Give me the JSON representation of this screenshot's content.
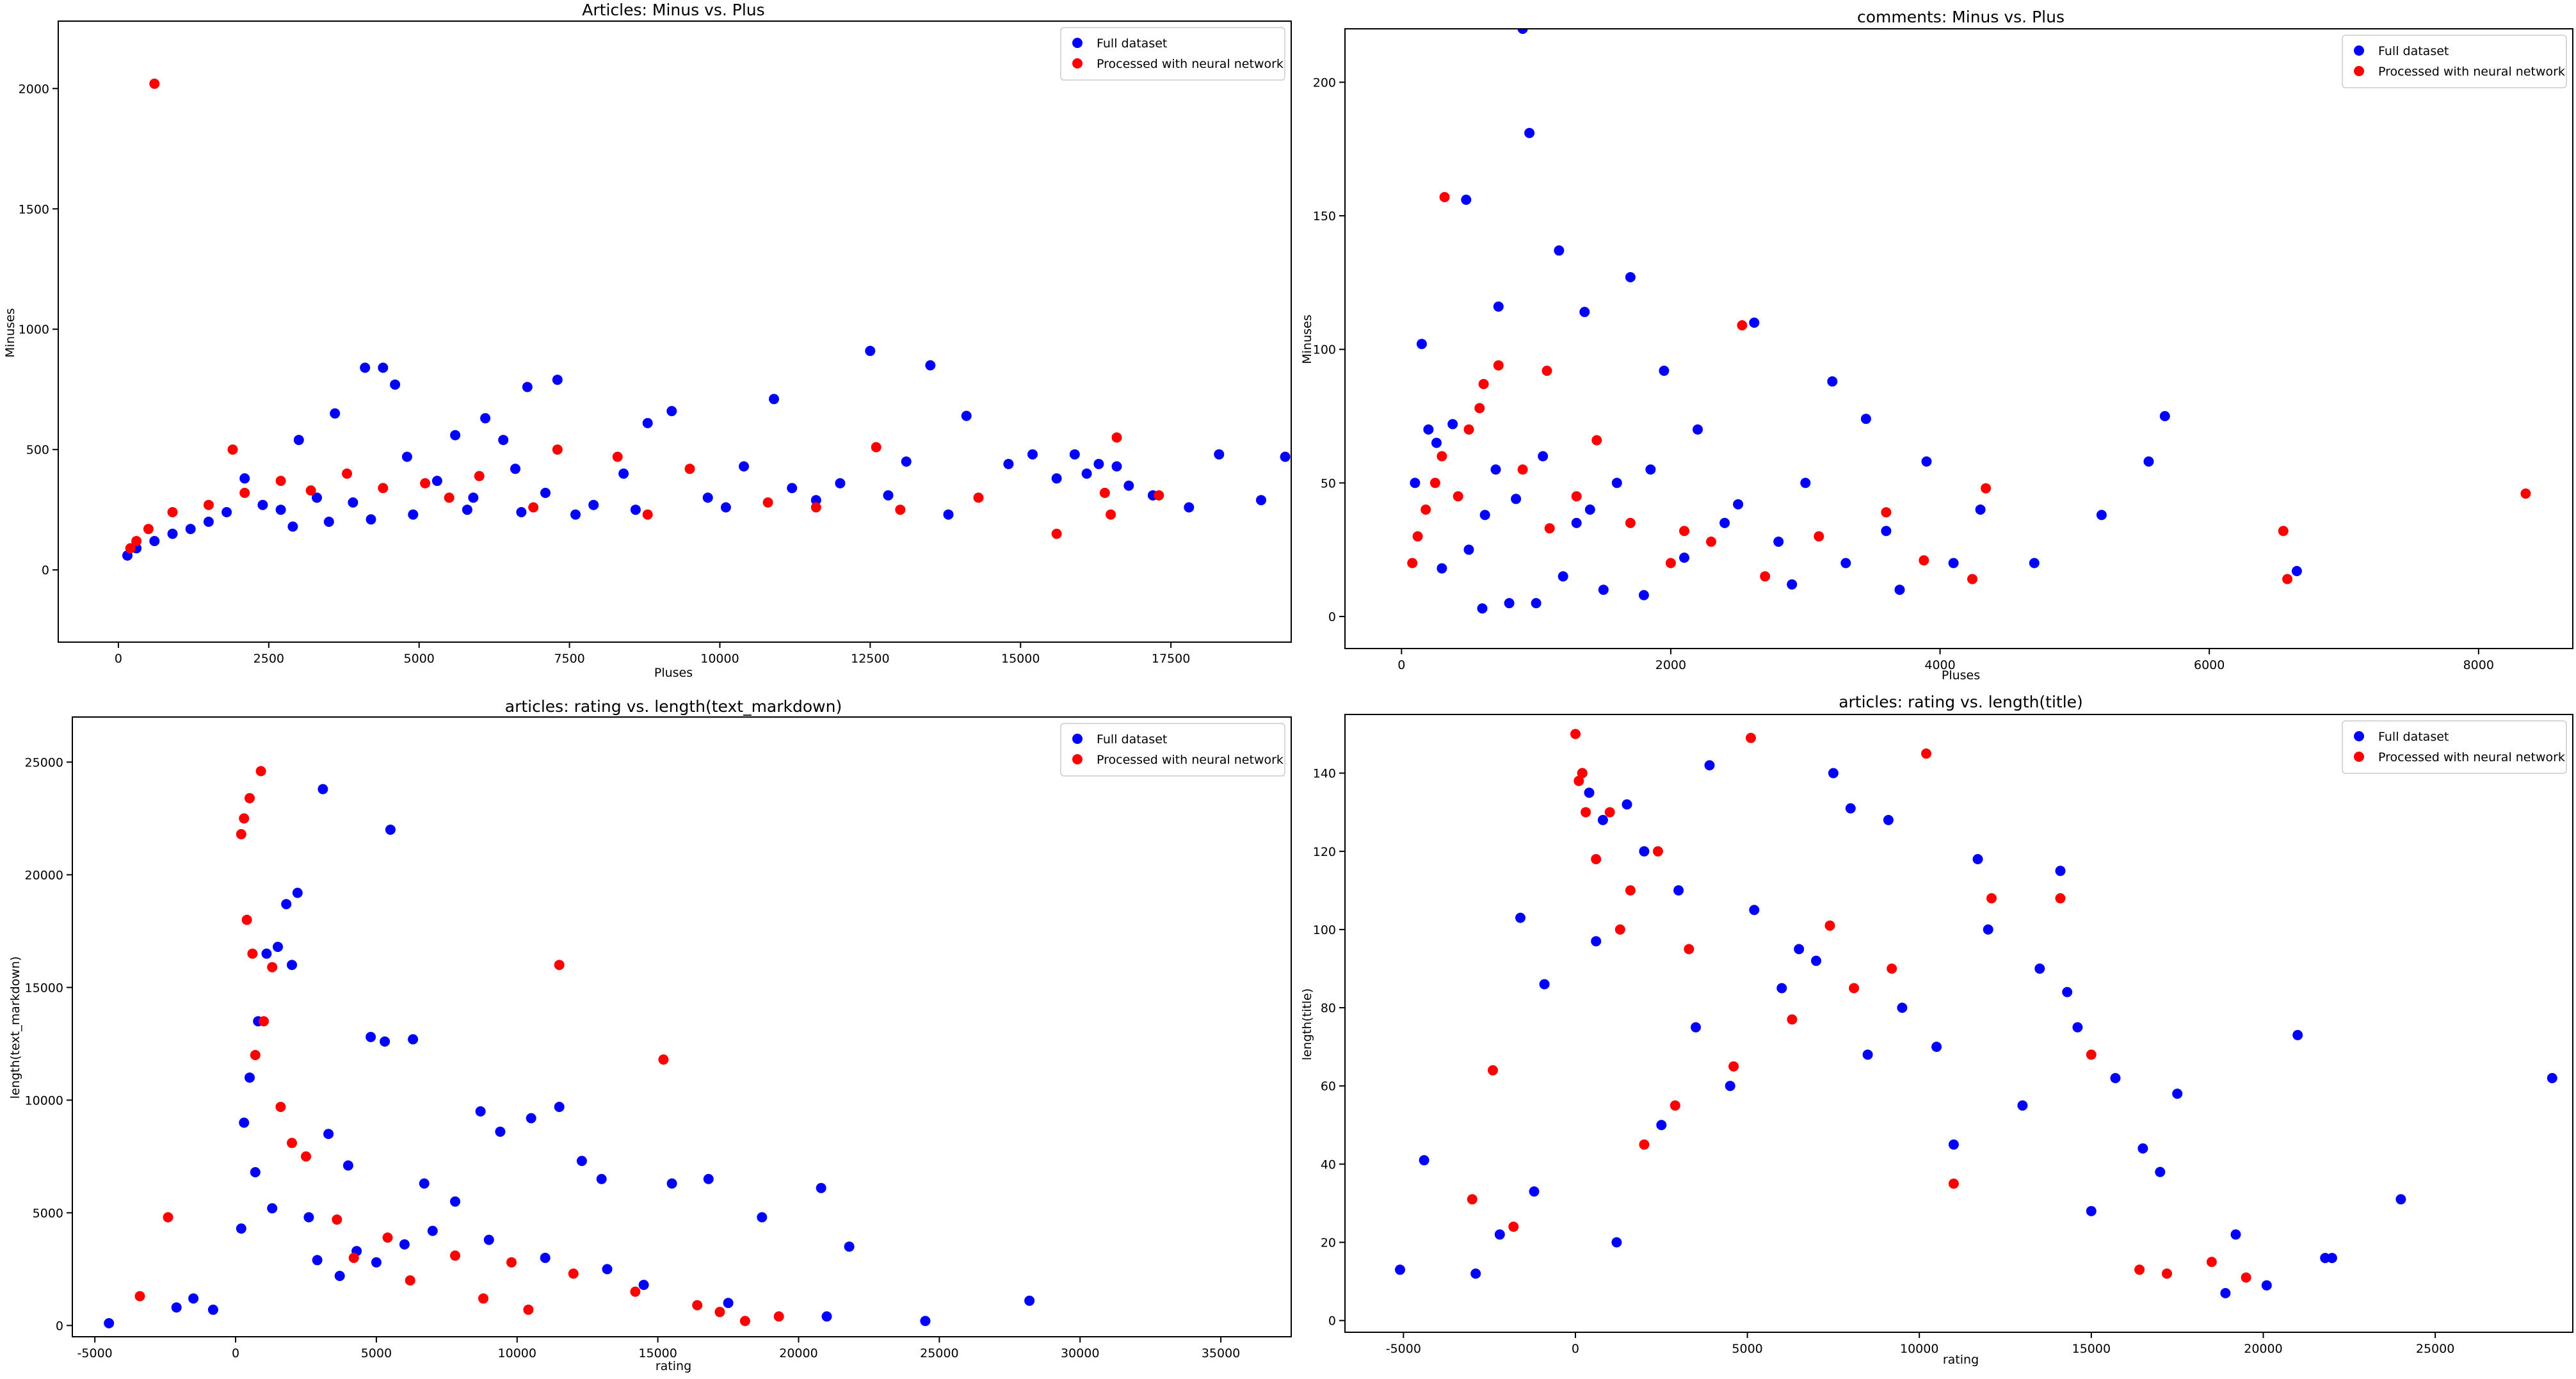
{
  "colors": {
    "full": "#0000ff",
    "nn": "#ff0000",
    "axis": "#000000",
    "background": "#ffffff"
  },
  "chart_data": [
    {
      "type": "scatter",
      "title": "Articles: Minus vs. Plus",
      "xlabel": "Pluses",
      "ylabel": "Minuses",
      "xlim": [
        -1000,
        19500
      ],
      "ylim": [
        -300,
        2280
      ],
      "xticks": [
        0,
        2500,
        5000,
        7500,
        10000,
        12500,
        15000,
        17500
      ],
      "yticks": [
        0,
        500,
        1000,
        1500,
        2000
      ],
      "legend": [
        "Full dataset",
        "Processed with neural network"
      ],
      "legend_loc": "upper right",
      "series": [
        {
          "name": "Full dataset",
          "color": "#0000ff",
          "x": [
            4100,
            4400,
            4600,
            6800,
            7300,
            12500,
            13500,
            8800,
            10900,
            9200,
            5600,
            6100,
            6400,
            3600,
            4800,
            3000,
            2100,
            14100,
            15200,
            15900,
            16100,
            16600,
            17200,
            18300,
            19000,
            19400,
            17800,
            16800,
            16300,
            15600,
            14800,
            13100,
            12000,
            11200,
            10400,
            9800,
            8400,
            7900,
            7100,
            6600,
            5900,
            5300,
            3900,
            3300,
            2700,
            2400,
            1800,
            1500,
            1200,
            900,
            600,
            300,
            150,
            13800,
            12800,
            11600,
            10100,
            8600,
            7600,
            6700,
            5800,
            4900,
            4200,
            3500,
            2900
          ],
          "y": [
            840,
            840,
            770,
            760,
            790,
            910,
            850,
            610,
            710,
            660,
            560,
            630,
            540,
            650,
            470,
            540,
            380,
            640,
            480,
            480,
            400,
            430,
            310,
            480,
            290,
            470,
            260,
            350,
            440,
            380,
            440,
            450,
            360,
            340,
            430,
            300,
            400,
            270,
            320,
            420,
            300,
            370,
            280,
            300,
            250,
            270,
            240,
            200,
            170,
            150,
            120,
            90,
            60,
            230,
            310,
            290,
            260,
            250,
            230,
            240,
            250,
            230,
            210,
            200,
            180
          ]
        },
        {
          "name": "Processed with neural network",
          "color": "#ff0000",
          "x": [
            600,
            1900,
            12600,
            15600,
            16600,
            16500,
            17300,
            16400,
            9500,
            7300,
            8300,
            6000,
            4400,
            3800,
            2700,
            1500,
            900,
            500,
            300,
            200,
            2100,
            3200,
            5100,
            5500,
            10800,
            11600,
            13000,
            14300,
            8800,
            6900
          ],
          "y": [
            2020,
            500,
            510,
            150,
            550,
            230,
            310,
            320,
            420,
            500,
            470,
            390,
            340,
            400,
            370,
            270,
            240,
            170,
            120,
            90,
            320,
            330,
            360,
            300,
            280,
            260,
            250,
            300,
            230,
            260
          ]
        }
      ]
    },
    {
      "type": "scatter",
      "title": "comments: Minus vs. Plus",
      "xlabel": "Pluses",
      "ylabel": "Minuses",
      "xlim": [
        -420,
        8700
      ],
      "ylim": [
        -12,
        220
      ],
      "xticks": [
        0,
        2000,
        4000,
        6000,
        8000
      ],
      "yticks": [
        0,
        50,
        100,
        150,
        200
      ],
      "legend": [
        "Full dataset",
        "Processed with neural network"
      ],
      "legend_loc": "upper right",
      "series": [
        {
          "name": "Full dataset",
          "color": "#0000ff",
          "x": [
            900,
            950,
            480,
            1170,
            1700,
            1360,
            720,
            1950,
            2620,
            5670,
            6650,
            5550,
            4700,
            5200,
            3200,
            3450,
            3000,
            3900,
            3600,
            4300,
            4100,
            2200,
            1850,
            1600,
            1050,
            850,
            620,
            380,
            260,
            200,
            150,
            100,
            1400,
            2400,
            2800,
            3300,
            3700,
            2900,
            2100,
            1300,
            700,
            500,
            300,
            1200,
            1500,
            1800,
            1000,
            800,
            600,
            2500
          ],
          "y": [
            220,
            181,
            156,
            137,
            127,
            114,
            116,
            92,
            110,
            75,
            17,
            58,
            20,
            38,
            88,
            74,
            50,
            58,
            32,
            40,
            20,
            70,
            55,
            50,
            60,
            44,
            38,
            72,
            65,
            70,
            102,
            50,
            40,
            35,
            28,
            20,
            10,
            12,
            22,
            35,
            55,
            25,
            18,
            15,
            10,
            8,
            5,
            5,
            3,
            42
          ]
        },
        {
          "name": "Processed with neural network",
          "color": "#ff0000",
          "x": [
            320,
            2530,
            8350,
            6550,
            6580,
            4340,
            4240,
            3880,
            2100,
            1450,
            1080,
            720,
            610,
            580,
            420,
            300,
            250,
            180,
            120,
            80,
            1100,
            1700,
            2300,
            3100,
            3600,
            900,
            500,
            1300,
            2000,
            2700
          ],
          "y": [
            157,
            109,
            46,
            32,
            14,
            48,
            14,
            21,
            32,
            66,
            92,
            94,
            87,
            78,
            45,
            60,
            50,
            40,
            30,
            20,
            33,
            35,
            28,
            30,
            39,
            55,
            70,
            45,
            20,
            15
          ]
        }
      ]
    },
    {
      "type": "scatter",
      "title": "articles: rating vs. length(text_markdown)",
      "xlabel": "rating",
      "ylabel": "length(text_markdown)",
      "xlim": [
        -5800,
        37500
      ],
      "ylim": [
        -500,
        27000
      ],
      "xticks": [
        -5000,
        0,
        5000,
        10000,
        15000,
        20000,
        25000,
        30000,
        35000
      ],
      "yticks": [
        0,
        5000,
        10000,
        15000,
        20000,
        25000
      ],
      "legend": [
        "Full dataset",
        "Processed with neural network"
      ],
      "legend_loc": "upper right",
      "series": [
        {
          "name": "Full dataset",
          "color": "#0000ff",
          "x": [
            3100,
            5500,
            2200,
            1800,
            1100,
            1500,
            2000,
            4800,
            5300,
            6300,
            8700,
            9400,
            10500,
            11500,
            12300,
            13000,
            15500,
            16800,
            18700,
            20800,
            21800,
            24500,
            28200,
            21000,
            17500,
            14500,
            13200,
            7800,
            6700,
            4000,
            3300,
            2600,
            800,
            500,
            300,
            -4500,
            -2100,
            -1500,
            -800,
            11000,
            9000,
            7000,
            6000,
            5000,
            4300,
            3700,
            2900,
            1300,
            700,
            200
          ],
          "y": [
            23800,
            22000,
            19200,
            18700,
            16500,
            16800,
            16000,
            12800,
            12600,
            12700,
            9500,
            8600,
            9200,
            9700,
            7300,
            6500,
            6300,
            6500,
            4800,
            6100,
            3500,
            200,
            1100,
            400,
            1000,
            1800,
            2500,
            5500,
            6300,
            7100,
            8500,
            4800,
            13500,
            11000,
            9000,
            100,
            800,
            1200,
            700,
            3000,
            3800,
            4200,
            3600,
            2800,
            3300,
            2200,
            2900,
            5200,
            6800,
            4300
          ]
        },
        {
          "name": "Processed with neural network",
          "color": "#ff0000",
          "x": [
            900,
            500,
            300,
            200,
            11500,
            15200,
            19300,
            -3400,
            -2400,
            400,
            600,
            1300,
            2500,
            3600,
            5400,
            7800,
            9800,
            12000,
            14200,
            16400,
            17200,
            18100,
            1000,
            700,
            1600,
            2000,
            4200,
            6200,
            8800,
            10400
          ],
          "y": [
            24600,
            23400,
            22500,
            21800,
            16000,
            11800,
            400,
            1300,
            4800,
            18000,
            16500,
            15900,
            7500,
            4700,
            3900,
            3100,
            2800,
            2300,
            1500,
            900,
            600,
            200,
            13500,
            12000,
            9700,
            8100,
            3000,
            2000,
            1200,
            700
          ]
        }
      ]
    },
    {
      "type": "scatter",
      "title": "articles: rating vs. length(title)",
      "xlabel": "rating",
      "ylabel": "length(title)",
      "xlim": [
        -6700,
        29000
      ],
      "ylim": [
        -3,
        155
      ],
      "xticks": [
        -5000,
        0,
        5000,
        10000,
        15000,
        20000,
        25000
      ],
      "yticks": [
        0,
        20,
        40,
        60,
        80,
        100,
        120,
        140
      ],
      "legend": [
        "Full dataset",
        "Processed with neural network"
      ],
      "legend_loc": "upper right",
      "series": [
        {
          "name": "Full dataset",
          "color": "#0000ff",
          "x": [
            -5100,
            -4400,
            -1600,
            -900,
            3900,
            7500,
            8000,
            9100,
            11700,
            14100,
            14300,
            14600,
            15700,
            17500,
            19200,
            21000,
            21800,
            24000,
            28400,
            20100,
            18900,
            16500,
            13500,
            12000,
            10500,
            9500,
            6500,
            5200,
            3000,
            2000,
            1500,
            800,
            400,
            200,
            -1200,
            -2200,
            -2900,
            22000,
            17000,
            15000,
            13000,
            11000,
            8500,
            7000,
            6000,
            4500,
            3500,
            2500,
            1200,
            600
          ],
          "y": [
            13,
            41,
            103,
            86,
            142,
            140,
            131,
            128,
            118,
            115,
            84,
            75,
            62,
            58,
            22,
            73,
            16,
            31,
            62,
            9,
            7,
            44,
            90,
            100,
            70,
            80,
            95,
            105,
            110,
            120,
            132,
            128,
            135,
            140,
            33,
            22,
            12,
            16,
            38,
            28,
            55,
            45,
            68,
            92,
            85,
            60,
            75,
            50,
            20,
            97
          ]
        },
        {
          "name": "Processed with neural network",
          "color": "#ff0000",
          "x": [
            -2400,
            -3000,
            -1800,
            0,
            200,
            1000,
            1600,
            2400,
            3300,
            5100,
            7400,
            10200,
            12100,
            14100,
            15000,
            16400,
            17200,
            18500,
            19500,
            9200,
            8100,
            6300,
            4600,
            2900,
            2000,
            1300,
            600,
            300,
            100,
            11000
          ],
          "y": [
            64,
            31,
            24,
            150,
            140,
            130,
            110,
            120,
            95,
            149,
            101,
            145,
            108,
            108,
            68,
            13,
            12,
            15,
            11,
            90,
            85,
            77,
            65,
            55,
            45,
            100,
            118,
            130,
            138,
            35
          ]
        }
      ]
    }
  ]
}
